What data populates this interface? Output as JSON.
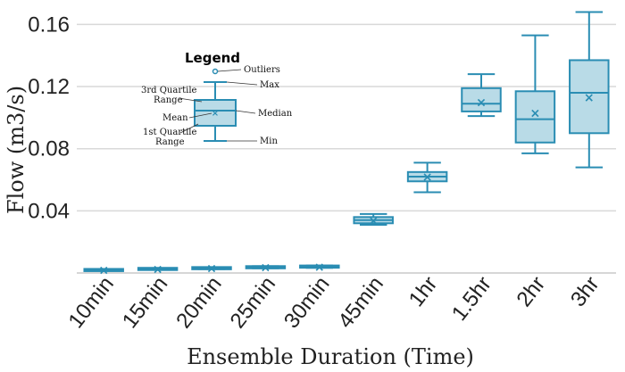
{
  "chart_data": {
    "type": "box",
    "xlabel": "Ensemble Duration (Time)",
    "ylabel": "Flow (m3/s)",
    "ylim": [
      0.0,
      0.17
    ],
    "yticks": [
      0.04,
      0.08,
      0.12,
      0.16
    ],
    "ytick_labels": [
      "0.04",
      "0.08",
      "0.12",
      "0.16"
    ],
    "grid": "horizontal",
    "box_color": "#2a8db3",
    "box_fill": "#b9dbe7",
    "categories": [
      "10min",
      "15min",
      "20min",
      "25min",
      "30min",
      "45min",
      "1hr",
      "1.5hr",
      "2hr",
      "3hr"
    ],
    "boxes": [
      {
        "category": "10min",
        "min": 0.0017,
        "q1": 0.0018,
        "median": 0.0019,
        "q3": 0.002,
        "max": 0.0021,
        "mean": 0.0019
      },
      {
        "category": "15min",
        "min": 0.0022,
        "q1": 0.0024,
        "median": 0.0026,
        "q3": 0.0028,
        "max": 0.003,
        "mean": 0.0026
      },
      {
        "category": "20min",
        "min": 0.0025,
        "q1": 0.0028,
        "median": 0.0031,
        "q3": 0.0034,
        "max": 0.0037,
        "mean": 0.0031
      },
      {
        "category": "25min",
        "min": 0.003,
        "q1": 0.0034,
        "median": 0.0037,
        "q3": 0.004,
        "max": 0.0044,
        "mean": 0.0037
      },
      {
        "category": "30min",
        "min": 0.0033,
        "q1": 0.0038,
        "median": 0.0041,
        "q3": 0.0044,
        "max": 0.0048,
        "mean": 0.0041
      },
      {
        "category": "45min",
        "min": 0.031,
        "q1": 0.032,
        "median": 0.034,
        "q3": 0.036,
        "max": 0.038,
        "mean": 0.034
      },
      {
        "category": "1hr",
        "min": 0.052,
        "q1": 0.059,
        "median": 0.062,
        "q3": 0.065,
        "max": 0.071,
        "mean": 0.062
      },
      {
        "category": "1.5hr",
        "min": 0.101,
        "q1": 0.104,
        "median": 0.109,
        "q3": 0.119,
        "max": 0.128,
        "mean": 0.11
      },
      {
        "category": "2hr",
        "min": 0.077,
        "q1": 0.084,
        "median": 0.099,
        "q3": 0.117,
        "max": 0.153,
        "mean": 0.103
      },
      {
        "category": "3hr",
        "min": 0.068,
        "q1": 0.09,
        "median": 0.116,
        "q3": 0.137,
        "max": 0.168,
        "mean": 0.113
      }
    ],
    "legend": {
      "title": "Legend",
      "outliers": "Outliers",
      "max": "Max",
      "q3": "3rd Quartile Range",
      "mean": "Mean",
      "median": "Median",
      "q1": "1st Quartile Range",
      "min": "Min"
    }
  }
}
